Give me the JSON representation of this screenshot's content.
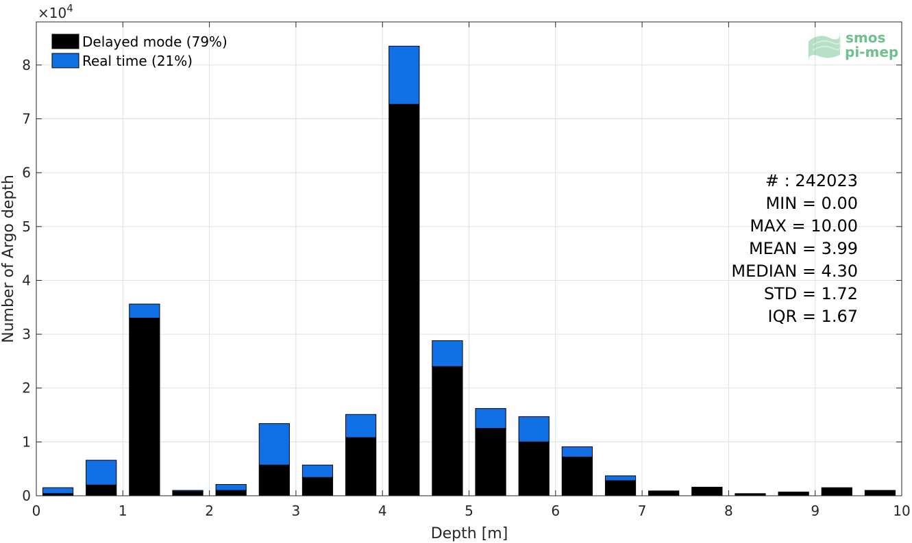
{
  "chart_data": {
    "type": "bar",
    "stacked": true,
    "xlabel": "Depth [m]",
    "ylabel": "Number of Argo depth",
    "y_exponent_label": "×10",
    "y_exponent_power": "4",
    "xlim": [
      0,
      10
    ],
    "ylim": [
      0,
      88000
    ],
    "x_ticks": [
      "0",
      "1",
      "2",
      "3",
      "4",
      "5",
      "6",
      "7",
      "8",
      "9",
      "10"
    ],
    "y_ticks": [
      "0",
      "1",
      "2",
      "3",
      "4",
      "5",
      "6",
      "7",
      "8"
    ],
    "grid": true,
    "legend_position": "top-left",
    "x": [
      0.25,
      0.75,
      1.25,
      1.75,
      2.25,
      2.75,
      3.25,
      3.75,
      4.25,
      4.75,
      5.25,
      5.75,
      6.25,
      6.75,
      7.25,
      7.75,
      8.25,
      8.75,
      9.25,
      9.75
    ],
    "series": [
      {
        "name": "Delayed mode (79%)",
        "color": "#000000",
        "values": [
          400,
          2000,
          33000,
          800,
          1000,
          5700,
          3400,
          10800,
          72700,
          24000,
          12500,
          10000,
          7200,
          2800,
          900,
          1600,
          400,
          700,
          1500,
          1000
        ]
      },
      {
        "name": "Real time (21%)",
        "color": "#1170e6",
        "values": [
          1100,
          4600,
          2600,
          200,
          1100,
          7700,
          2300,
          4300,
          10800,
          4800,
          3700,
          4700,
          1900,
          900,
          0,
          0,
          0,
          0,
          0,
          0
        ]
      }
    ],
    "stats": [
      "# : 242023",
      "MIN = 0.00",
      "MAX =  10.00",
      "MEAN = 3.99",
      "MEDIAN = 4.30",
      "STD = 1.72",
      "IQR = 1.67"
    ]
  },
  "logo": {
    "line1": "smos",
    "line2": "pi-mep"
  }
}
